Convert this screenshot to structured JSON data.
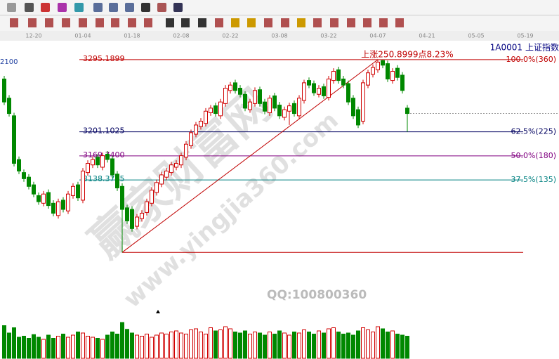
{
  "header": {
    "code": "1A0001",
    "name": "上证指数"
  },
  "watermark": {
    "site_cn": "赢家财富网",
    "site_url": "www.yingjia360.com",
    "qq": "QQ:100800360"
  },
  "chart_data": {
    "type": "candlestick",
    "left_label": "2100",
    "annotation": "上涨250.8999点8.23%",
    "categories": [
      null,
      null,
      null,
      null,
      null,
      null,
      "12-20",
      null,
      null,
      null,
      null,
      null,
      null,
      null,
      null,
      null,
      "01-04",
      null,
      null,
      null,
      null,
      null,
      null,
      null,
      null,
      null,
      "01-18",
      null,
      null,
      null,
      null,
      null,
      null,
      null,
      null,
      null,
      "02-08",
      null,
      null,
      null,
      null,
      null,
      null,
      null,
      null,
      null,
      "02-22",
      null,
      null,
      null,
      null,
      null,
      null,
      null,
      null,
      null,
      "03-08",
      null,
      null,
      null,
      null,
      null,
      null,
      null,
      null,
      null,
      "03-22",
      null,
      null,
      null,
      null,
      null,
      null,
      null,
      null,
      null,
      "04-07",
      null,
      null,
      null,
      null,
      null,
      null,
      null,
      null,
      null,
      "04-21",
      null,
      null,
      null,
      null,
      null,
      null,
      null,
      null,
      null,
      "05-05",
      null,
      null,
      null,
      null,
      null,
      null,
      null,
      null,
      null,
      "05-19"
    ],
    "open": [
      3270,
      3245,
      3222,
      3165,
      3148,
      3142,
      3132,
      3118,
      3108,
      3122,
      3108,
      3092,
      3112,
      3098,
      3118,
      3132,
      3112,
      3148,
      3158,
      3168,
      3155,
      3172,
      3166,
      3146,
      3130,
      3102,
      3100,
      3078,
      3088,
      3096,
      3108,
      3122,
      3133,
      3142,
      3148,
      3155,
      3158,
      3168,
      3183,
      3198,
      3208,
      3212,
      3226,
      3235,
      3222,
      3238,
      3255,
      3265,
      3258,
      3250,
      3230,
      3238,
      3256,
      3240,
      3226,
      3248,
      3236,
      3220,
      3228,
      3238,
      3222,
      3242,
      3268,
      3264,
      3250,
      3260,
      3246,
      3268,
      3282,
      3270,
      3264,
      3245,
      3230,
      3215,
      3262,
      3276,
      3282,
      3294,
      3290,
      3268,
      3284,
      3275,
      3232,
      null,
      null,
      null,
      null,
      null,
      null,
      null,
      null,
      null,
      null,
      null,
      null,
      null,
      null,
      null,
      null,
      null,
      null,
      null,
      null,
      null,
      null,
      null,
      null
    ],
    "high": [
      3274,
      3249,
      3226,
      3169,
      3152,
      3146,
      3136,
      3122,
      3124,
      3126,
      3112,
      3114,
      3116,
      3124,
      3134,
      3136,
      3154,
      3164,
      3169,
      3172,
      3174,
      3176,
      3170,
      3150,
      3134,
      3106,
      3104,
      3094,
      3099,
      3114,
      3129,
      3139,
      3149,
      3154,
      3162,
      3164,
      3174,
      3189,
      3204,
      3214,
      3219,
      3232,
      3236,
      3239,
      3244,
      3262,
      3266,
      3269,
      3262,
      3254,
      3244,
      3259,
      3260,
      3244,
      3249,
      3252,
      3240,
      3234,
      3239,
      3242,
      3249,
      3269,
      3272,
      3268,
      3262,
      3264,
      3274,
      3284,
      3286,
      3274,
      3268,
      3249,
      3234,
      3269,
      3282,
      3289,
      3295.1899,
      3295,
      3294,
      3284,
      3288,
      3279,
      3236,
      null,
      null,
      null,
      null,
      null,
      null,
      null,
      null,
      null,
      null,
      null,
      null,
      null,
      null,
      null,
      null,
      null,
      null,
      null,
      null,
      null,
      null,
      null,
      null
    ],
    "low": [
      3236,
      3221,
      3156,
      3146,
      3136,
      3126,
      3116,
      3106,
      3104,
      3101,
      3091,
      3088,
      3096,
      3094,
      3114,
      3111,
      3108,
      3144,
      3154,
      3154,
      3151,
      3161,
      3141,
      3124,
      3044,
      3081,
      3071,
      3074,
      3084,
      3092,
      3104,
      3118,
      3129,
      3138,
      3144,
      3151,
      3154,
      3164,
      3179,
      3194,
      3204,
      3208,
      3222,
      3221,
      3218,
      3234,
      3251,
      3251,
      3246,
      3228,
      3226,
      3234,
      3234,
      3224,
      3222,
      3228,
      3218,
      3216,
      3210,
      3221,
      3218,
      3238,
      3258,
      3248,
      3246,
      3244,
      3242,
      3264,
      3264,
      3258,
      3236,
      3218,
      3206,
      3211,
      3258,
      3272,
      3278,
      3284,
      3266,
      3264,
      3268,
      3251,
      3201.1025,
      null,
      null,
      null,
      null,
      null,
      null,
      null,
      null,
      null,
      null,
      null,
      null,
      null,
      null,
      null,
      null,
      null,
      null,
      null,
      null,
      null,
      null,
      null,
      null
    ],
    "close": [
      3240,
      3225,
      3160,
      3150,
      3140,
      3130,
      3120,
      3110,
      3120,
      3105,
      3095,
      3110,
      3100,
      3120,
      3130,
      3115,
      3150,
      3160,
      3165,
      3158,
      3170,
      3165,
      3145,
      3128,
      3100,
      3085,
      3075,
      3090,
      3095,
      3110,
      3125,
      3135,
      3145,
      3150,
      3158,
      3160,
      3170,
      3185,
      3200,
      3210,
      3215,
      3228,
      3232,
      3225,
      3240,
      3258,
      3262,
      3255,
      3250,
      3232,
      3240,
      3255,
      3238,
      3228,
      3245,
      3232,
      3222,
      3230,
      3235,
      3225,
      3245,
      3265,
      3262,
      3252,
      3258,
      3248,
      3270,
      3280,
      3268,
      3262,
      3240,
      3222,
      3210,
      3265,
      3278,
      3285,
      3292,
      3288,
      3270,
      3280,
      3272,
      3255,
      3225,
      null,
      null,
      null,
      null,
      null,
      null,
      null,
      null,
      null,
      null,
      null,
      null,
      null,
      null,
      null,
      null,
      null,
      null,
      null,
      null,
      null,
      null,
      null,
      null
    ],
    "volume": [
      62,
      48,
      58,
      40,
      42,
      38,
      45,
      40,
      36,
      44,
      38,
      42,
      46,
      40,
      44,
      50,
      48,
      42,
      40,
      38,
      36,
      44,
      50,
      46,
      68,
      55,
      48,
      44,
      42,
      46,
      40,
      44,
      48,
      46,
      50,
      52,
      48,
      46,
      54,
      56,
      50,
      46,
      58,
      52,
      54,
      60,
      56,
      50,
      48,
      52,
      46,
      50,
      48,
      44,
      50,
      46,
      52,
      48,
      44,
      50,
      48,
      54,
      50,
      46,
      52,
      48,
      56,
      58,
      50,
      46,
      48,
      44,
      52,
      58,
      54,
      50,
      60,
      56,
      50,
      52,
      46,
      44,
      42,
      null,
      null,
      null,
      null,
      null,
      null,
      null,
      null,
      null,
      null,
      null,
      null,
      null,
      null,
      null,
      null,
      null,
      null,
      null,
      null,
      null,
      null,
      null,
      null
    ],
    "ylim": [
      2970,
      3318
    ],
    "vlim": [
      0,
      80
    ],
    "up_color": "#d00000",
    "down_color": "#008800",
    "fib_levels": [
      {
        "value": 3295.1899,
        "label": "3295.1899",
        "ratio_label": "100.0%(360)",
        "color": "#c00000"
      },
      {
        "value": 3201.1025,
        "label": "3201.1025",
        "ratio_label": "62.5%(225)",
        "color": "#000060"
      },
      {
        "value": 3169.74,
        "label": "3169.7400",
        "ratio_label": "50.0%(180)",
        "color": "#800080"
      },
      {
        "value": 3138.3775,
        "label": "3138.3775",
        "ratio_label": "37.5%(135)",
        "color": "#008080"
      }
    ]
  }
}
